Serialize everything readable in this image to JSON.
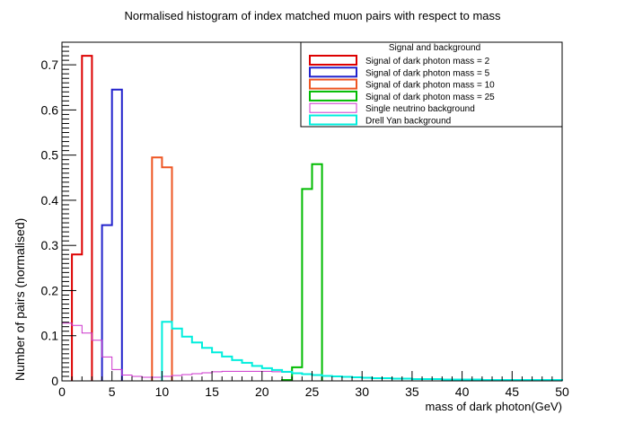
{
  "chart_data": {
    "type": "histogram",
    "title": "Normalised histogram of index matched muon pairs with respect to mass",
    "xlabel": "mass of dark photon(GeV)",
    "ylabel": "Number of pairs (normalised)",
    "xlim": [
      0,
      50
    ],
    "ylim": [
      0,
      0.75
    ],
    "x_ticks": [
      0,
      5,
      10,
      15,
      20,
      25,
      30,
      35,
      40,
      45,
      50
    ],
    "y_ticks": [
      0,
      0.1,
      0.2,
      0.3,
      0.4,
      0.5,
      0.6,
      0.7
    ],
    "grid": false,
    "legend_title": "Signal and background",
    "legend_position": "top-right",
    "series": [
      {
        "name": "Signal of dark photon mass = 2",
        "color": "#dd0000",
        "bins": [
          [
            1,
            2,
            0.28
          ],
          [
            2,
            3,
            0.72
          ]
        ]
      },
      {
        "name": "Signal of dark photon mass = 5",
        "color": "#2222cc",
        "bins": [
          [
            4,
            5,
            0.345
          ],
          [
            5,
            6,
            0.645
          ]
        ]
      },
      {
        "name": "Signal of dark photon mass = 10",
        "color": "#ee5522",
        "bins": [
          [
            9,
            10,
            0.495
          ],
          [
            10,
            11,
            0.473
          ]
        ]
      },
      {
        "name": "Signal of dark photon mass = 25",
        "color": "#00bb00",
        "bins": [
          [
            22,
            23,
            0.002
          ],
          [
            23,
            24,
            0.03
          ],
          [
            24,
            25,
            0.425
          ],
          [
            25,
            26,
            0.48
          ]
        ]
      },
      {
        "name": "Single neutrino background",
        "color": "#cc33cc",
        "bins": [
          [
            0,
            1,
            0.128
          ],
          [
            1,
            2,
            0.123
          ],
          [
            2,
            3,
            0.106
          ],
          [
            3,
            4,
            0.09
          ],
          [
            4,
            5,
            0.053
          ],
          [
            5,
            6,
            0.025
          ],
          [
            6,
            7,
            0.013
          ],
          [
            7,
            8,
            0.01
          ],
          [
            8,
            9,
            0.008
          ],
          [
            9,
            10,
            0.008
          ],
          [
            10,
            11,
            0.01
          ],
          [
            11,
            12,
            0.012
          ],
          [
            12,
            13,
            0.014
          ],
          [
            13,
            14,
            0.016
          ],
          [
            14,
            15,
            0.018
          ],
          [
            15,
            16,
            0.02
          ],
          [
            16,
            17,
            0.021
          ],
          [
            17,
            18,
            0.021
          ],
          [
            18,
            19,
            0.021
          ],
          [
            19,
            20,
            0.021
          ],
          [
            20,
            21,
            0.021
          ],
          [
            21,
            22,
            0.02
          ],
          [
            22,
            23,
            0.019
          ],
          [
            23,
            24,
            0.017
          ],
          [
            24,
            25,
            0.015
          ],
          [
            25,
            26,
            0.013
          ],
          [
            26,
            27,
            0.011
          ],
          [
            27,
            28,
            0.01
          ],
          [
            28,
            29,
            0.009
          ],
          [
            29,
            30,
            0.008
          ],
          [
            30,
            31,
            0.007
          ],
          [
            31,
            32,
            0.006
          ],
          [
            32,
            33,
            0.006
          ],
          [
            33,
            34,
            0.005
          ],
          [
            34,
            35,
            0.005
          ],
          [
            35,
            36,
            0.004
          ],
          [
            36,
            37,
            0.004
          ],
          [
            37,
            38,
            0.003
          ],
          [
            38,
            39,
            0.003
          ],
          [
            39,
            40,
            0.003
          ],
          [
            40,
            41,
            0.002
          ],
          [
            41,
            42,
            0.002
          ],
          [
            42,
            43,
            0.002
          ],
          [
            43,
            44,
            0.002
          ],
          [
            44,
            45,
            0.002
          ],
          [
            45,
            46,
            0.001
          ],
          [
            46,
            47,
            0.001
          ],
          [
            47,
            48,
            0.001
          ],
          [
            48,
            49,
            0.001
          ],
          [
            49,
            50,
            0.001
          ]
        ]
      },
      {
        "name": "Drell Yan background",
        "color": "#00eedd",
        "bins": [
          [
            10,
            11,
            0.131
          ],
          [
            11,
            12,
            0.116
          ],
          [
            12,
            13,
            0.098
          ],
          [
            13,
            14,
            0.085
          ],
          [
            14,
            15,
            0.073
          ],
          [
            15,
            16,
            0.063
          ],
          [
            16,
            17,
            0.054
          ],
          [
            17,
            18,
            0.046
          ],
          [
            18,
            19,
            0.04
          ],
          [
            19,
            20,
            0.033
          ],
          [
            20,
            21,
            0.028
          ],
          [
            21,
            22,
            0.024
          ],
          [
            22,
            23,
            0.02
          ],
          [
            23,
            24,
            0.017
          ],
          [
            24,
            25,
            0.015
          ],
          [
            25,
            26,
            0.013
          ],
          [
            26,
            27,
            0.011
          ],
          [
            27,
            28,
            0.01
          ],
          [
            28,
            29,
            0.009
          ],
          [
            29,
            30,
            0.008
          ],
          [
            30,
            31,
            0.007
          ],
          [
            31,
            32,
            0.006
          ],
          [
            32,
            33,
            0.006
          ],
          [
            33,
            34,
            0.005
          ],
          [
            34,
            35,
            0.005
          ],
          [
            35,
            36,
            0.004
          ],
          [
            36,
            37,
            0.004
          ],
          [
            37,
            38,
            0.004
          ],
          [
            38,
            39,
            0.003
          ],
          [
            39,
            40,
            0.003
          ],
          [
            40,
            41,
            0.003
          ],
          [
            41,
            42,
            0.003
          ],
          [
            42,
            43,
            0.002
          ],
          [
            43,
            44,
            0.002
          ],
          [
            44,
            45,
            0.002
          ],
          [
            45,
            46,
            0.002
          ],
          [
            46,
            47,
            0.002
          ],
          [
            47,
            48,
            0.002
          ],
          [
            48,
            49,
            0.002
          ],
          [
            49,
            50,
            0.002
          ]
        ]
      }
    ]
  }
}
